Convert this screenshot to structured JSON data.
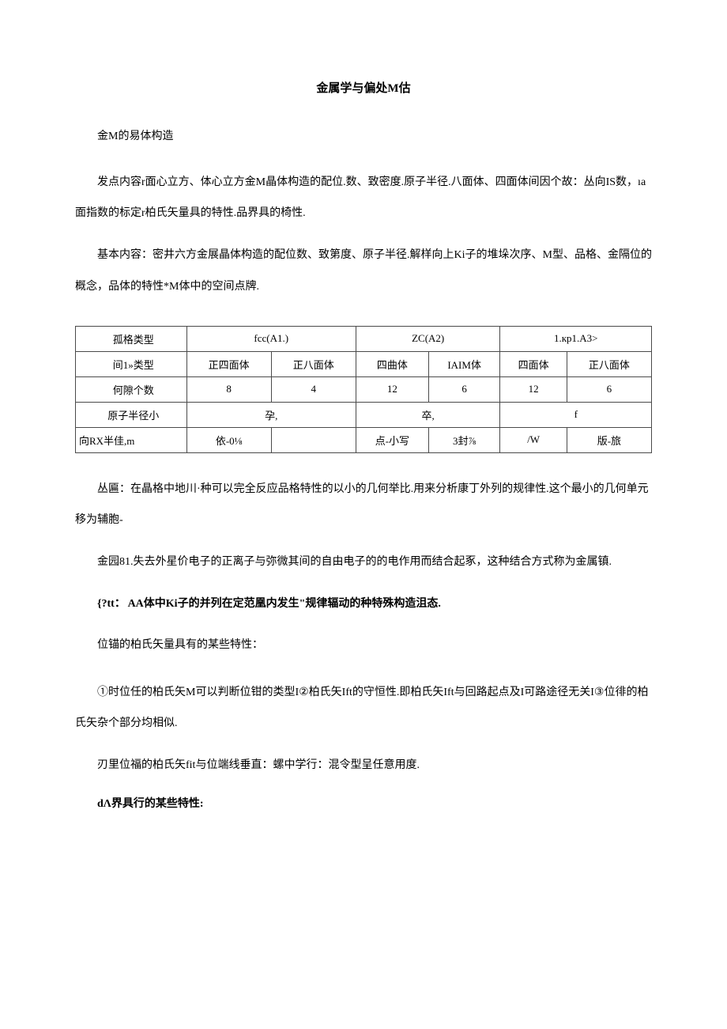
{
  "title": "金属学与偏处M估",
  "sectionHeading": "金M的易体构造",
  "para1": "发点内容r面心立方、体心立方金M晶体构造的配位.数、致密度.原子半径.八面体、四面体间因个故：丛向IS数，ıa面指数的标定r柏氏矢量具的特性.品界具的椅性.",
  "para2": "基本内容：密井六方金展晶体构造的配位数、致第度、原子半径.解样向上Ki子的堆垛次序、M型、品格、金隔位的概念，品体的特性*M体中的空间点牌.",
  "table": {
    "rows": [
      {
        "c0": "孤格类型",
        "c1": {
          "text": "fcc(A1.)",
          "colspan": 2
        },
        "c2": {
          "text": "ZC(A2)",
          "colspan": 2
        },
        "c3": {
          "text": "1.кp1.A3>",
          "colspan": 2
        }
      },
      {
        "c0": "间1»类型",
        "cells": [
          "正四面体",
          "正八面体",
          "四曲体",
          "IAIM体",
          "四面体",
          "正八面体"
        ]
      },
      {
        "c0": "何隙个数",
        "cells": [
          "8",
          "4",
          "12",
          "6",
          "12",
          "6"
        ]
      },
      {
        "c0": "原子半径小",
        "c1": {
          "text": "孕,",
          "colspan": 2
        },
        "c2": {
          "text": "卒,",
          "colspan": 2
        },
        "c3": {
          "text": "f",
          "colspan": 2
        }
      },
      {
        "c0": "向RX半佳,m",
        "cells": [
          "依-0⅛",
          "",
          "点-小写",
          "3封⅞",
          "/W",
          "版-旅"
        ]
      }
    ]
  },
  "para3": "丛匾：在晶格中地川·种可以完全反应品格特性的以小的几何举比.用来分析康丁外列的规律性.这个最小的几何单元移为辅胞-",
  "para4": "金园81.失去外星价电子的正离子与弥微其间的自由电子的的电作用而结合起豖，这种结合方式称为金属镇.",
  "para5": "{?tt： AA体中Ki子的并列在定范凰内发生\"规律辐动的种特殊构造沮态.",
  "para6": "位锚的柏氏矢量具有的某些特性：",
  "para7": "①时位任的柏氏矢M可以判断位钳的类型I②柏氏矢Ift的守恒性.即柏氏矢Ift与回路起点及I可路途径无关I③位徘的柏氏矢杂个部分均相似.",
  "para8": "刃里位福的柏氏矢fit与位端线垂直：螺中学行：混令型呈任意用度.",
  "para9": "dΛ界具行的某些特性:",
  "colors": {
    "text": "#000000",
    "bg": "#ffffff",
    "border": "#4a4a4a"
  }
}
